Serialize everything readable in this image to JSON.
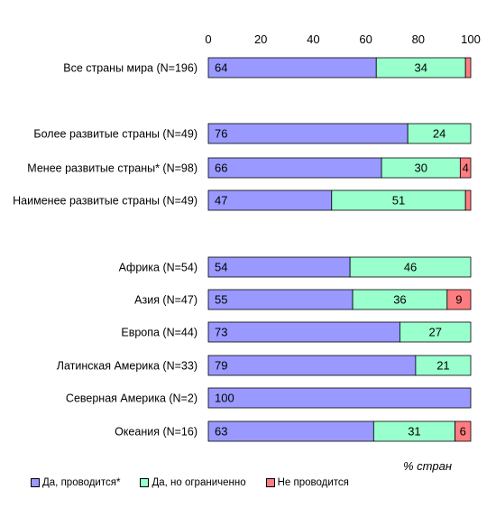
{
  "chart_data": {
    "type": "bar",
    "orientation": "horizontal",
    "stacked": true,
    "xlabel": "% стран",
    "xlim": [
      0,
      100
    ],
    "xticks": [
      "0",
      "20",
      "40",
      "60",
      "80",
      "100"
    ],
    "categories": [
      "Все страны мира (N=196)",
      "Более развитые страны (N=49)",
      "Менее развитые страны* (N=98)",
      "Наименее развитые страны (N=49)",
      "Африка (N=54)",
      "Азия (N=47)",
      "Европа (N=44)",
      "Латинская Америка (N=33)",
      "Северная Америка (N=2)",
      "Океания (N=16)"
    ],
    "series": [
      {
        "name": "Да, проводится*",
        "color": "#9999ff",
        "values": [
          64,
          76,
          66,
          47,
          54,
          55,
          73,
          79,
          100,
          63
        ],
        "labels": [
          "64",
          "76",
          "66",
          "47",
          "54",
          "55",
          "73",
          "79",
          "100",
          "63"
        ]
      },
      {
        "name": "Да, но ограниченно",
        "color": "#99ffcc",
        "values": [
          34,
          24,
          30,
          51,
          46,
          36,
          27,
          21,
          0,
          31
        ],
        "labels": [
          "34",
          "24",
          "30",
          "51",
          "46",
          "36",
          "27",
          "21",
          "",
          "31"
        ]
      },
      {
        "name": "Не проводится",
        "color": "#ff7c80",
        "values": [
          2,
          0,
          4,
          2,
          0,
          9,
          0,
          0,
          0,
          6
        ],
        "labels": [
          "",
          "",
          "4",
          "",
          "",
          "9",
          "",
          "",
          "",
          "6"
        ]
      }
    ],
    "grid": false,
    "legend_position": "bottom-left"
  }
}
